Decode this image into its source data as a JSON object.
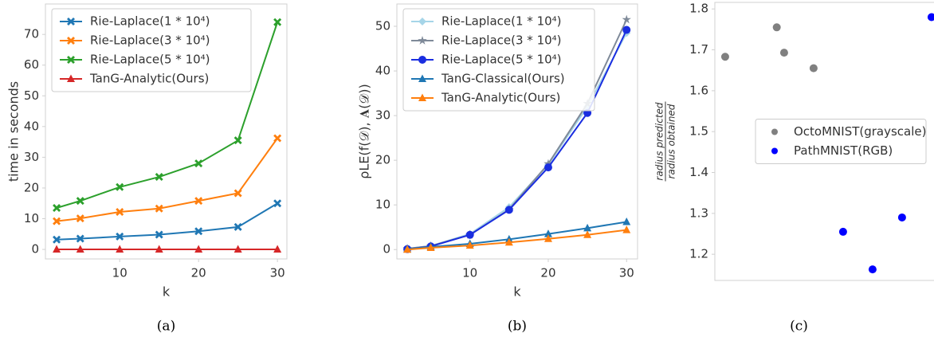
{
  "chart_data": [
    {
      "type": "line",
      "xlabel": "k",
      "ylabel": "time in seconds",
      "caption": "(a)",
      "legend": "upper left",
      "grid": false,
      "x": [
        2,
        5,
        10,
        15,
        20,
        25,
        30
      ],
      "xlim": [
        0.58,
        31.2
      ],
      "xticks": [
        10,
        20,
        30
      ],
      "ylim": [
        -3.1,
        79.9
      ],
      "yticks": [
        0,
        10,
        20,
        30,
        40,
        50,
        60,
        70
      ],
      "series": [
        {
          "name": "Rie-Laplace(1 * 10⁴)",
          "color": "#1f77b4",
          "marker": "X",
          "values": [
            3.2,
            3.5,
            4.2,
            4.8,
            5.9,
            7.3,
            15
          ]
        },
        {
          "name": "Rie-Laplace(3 * 10⁴)",
          "color": "#ff7f0e",
          "marker": "X",
          "values": [
            9.2,
            10.1,
            12.2,
            13.3,
            15.8,
            18.3,
            36.2
          ]
        },
        {
          "name": "Rie-Laplace(5 * 10⁴)",
          "color": "#2ca02c",
          "marker": "X",
          "values": [
            13.5,
            15.8,
            20.3,
            23.6,
            28,
            35.5,
            74
          ]
        },
        {
          "name": "TanG-Analytic(Ours)",
          "color": "#d62728",
          "marker": "^",
          "values": [
            0,
            0,
            0,
            0,
            0,
            0,
            0
          ]
        }
      ]
    },
    {
      "type": "line",
      "xlabel": "k",
      "ylabel": "ρLE(f(𝒟), 𝐀(𝒟))",
      "caption": "(b)",
      "legend": "upper left",
      "grid": false,
      "x": [
        2,
        5,
        10,
        15,
        20,
        25,
        30
      ],
      "xlim": [
        0.67,
        31.4
      ],
      "xticks": [
        10,
        20,
        30
      ],
      "ylim": [
        -2.1,
        55
      ],
      "yticks": [
        0,
        10,
        20,
        30,
        40,
        50
      ],
      "series": [
        {
          "name": "Rie-Laplace(1 * 10⁴)",
          "color": "#a6d5e8",
          "marker": "D",
          "values": [
            0.2,
            0.8,
            3.5,
            9.5,
            19,
            32,
            48.5
          ]
        },
        {
          "name": "Rie-Laplace(3 * 10⁴)",
          "color": "#7f8a99",
          "marker": "*",
          "values": [
            0.2,
            0.8,
            3.3,
            9.0,
            19.2,
            32.7,
            51.5
          ]
        },
        {
          "name": "Rie-Laplace(5 * 10⁴)",
          "color": "#1a2ee0",
          "marker": "o",
          "values": [
            0.1,
            0.7,
            3.3,
            8.9,
            18.4,
            30.6,
            49.2
          ]
        },
        {
          "name": "TanG-Classical(Ours)",
          "color": "#1f77b4",
          "marker": "^",
          "values": [
            0.1,
            0.6,
            1.3,
            2.3,
            3.5,
            4.8,
            6.2
          ]
        },
        {
          "name": "TanG-Analytic(Ours)",
          "color": "#ff7f0e",
          "marker": "^",
          "values": [
            0,
            0.4,
            0.9,
            1.6,
            2.4,
            3.3,
            4.4
          ]
        }
      ]
    },
    {
      "type": "scatter",
      "ylabel_numerator": "radius predicted",
      "ylabel_denominator": "radius obtained",
      "caption": "(c)",
      "legend": "center right",
      "grid": false,
      "xlim": [
        -0.35,
        7.3
      ],
      "ylim": [
        1.136,
        1.816
      ],
      "yticks": [
        1.2,
        1.3,
        1.4,
        1.5,
        1.6,
        1.7,
        1.8
      ],
      "series": [
        {
          "name": "OctoMNIST(grayscale)",
          "color": "#808080",
          "marker": "o",
          "x": [
            0,
            1.75,
            2,
            3
          ],
          "values": [
            1.683,
            1.755,
            1.693,
            1.655
          ]
        },
        {
          "name": "PathMNIST(RGB)",
          "color": "#0000ff",
          "marker": "o",
          "x": [
            4,
            5,
            6,
            7
          ],
          "values": [
            1.255,
            1.163,
            1.29,
            1.78
          ]
        }
      ]
    }
  ]
}
